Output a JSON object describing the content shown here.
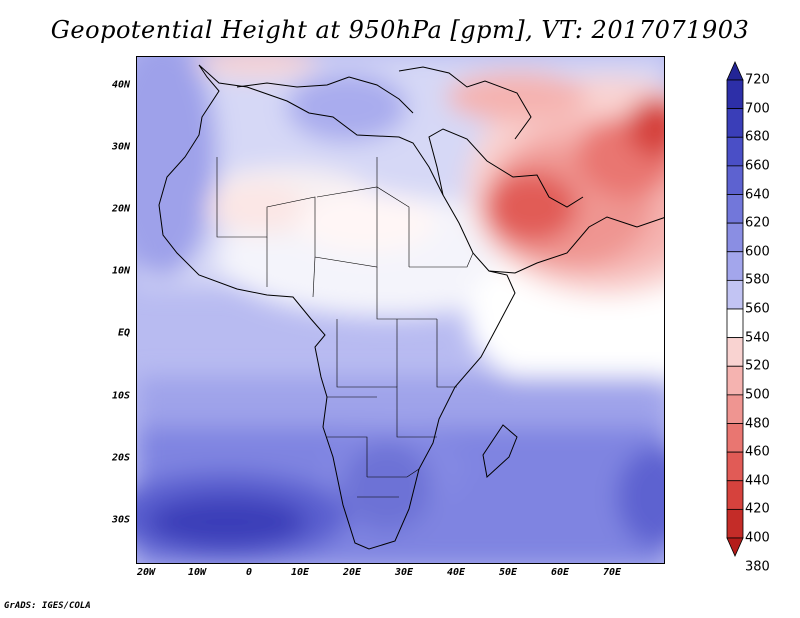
{
  "title": "Geopotential Height at 950hPa [gpm], VT: 2017071903",
  "credit": "GrADS: IGES/COLA",
  "lat_ticks": [
    "40N",
    "30N",
    "20N",
    "10N",
    "EQ",
    "10S",
    "20S",
    "30S"
  ],
  "lon_ticks": [
    "20W",
    "10W",
    "0",
    "10E",
    "20E",
    "30E",
    "40E",
    "50E",
    "60E",
    "70E"
  ],
  "colorbar": {
    "levels": [
      720,
      700,
      680,
      660,
      640,
      620,
      600,
      580,
      560,
      540,
      520,
      500,
      480,
      460,
      440,
      420,
      400,
      380
    ],
    "colors": [
      "#232596",
      "#2d2fa8",
      "#3a3eb8",
      "#4a4fc6",
      "#5d62d0",
      "#7277da",
      "#8a8ee3",
      "#a3a6ec",
      "#c2c4f3",
      "#ffffff",
      "#f9d3d1",
      "#f5b3b0",
      "#ef9591",
      "#e97671",
      "#e15b56",
      "#d6423d",
      "#c42c28",
      "#b41c1a"
    ]
  },
  "colors": {
    "frame": "#000000",
    "land_outline": "#000000"
  }
}
